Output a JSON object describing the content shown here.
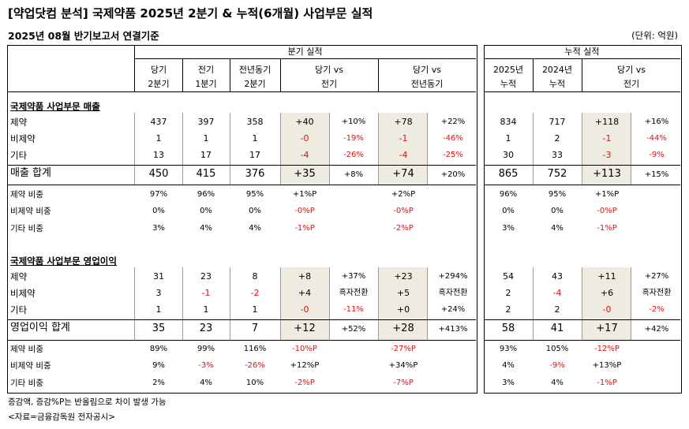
{
  "title": "[약업닷컴 분석] 국제약품 2025년 2분기 & 누적(6개월) 사업부문 실적",
  "subtitle": "2025년 08월 반기보고서 연결기준",
  "unit": "(단위: 억원)",
  "groups": {
    "quarter": "분기 실적",
    "cumulative": "누적 실적"
  },
  "headers": {
    "cur": [
      "당기",
      "2분기"
    ],
    "prev": [
      "전기",
      "1분기"
    ],
    "yoy": [
      "전년동기",
      "2분기"
    ],
    "vs_prev": [
      "당기 vs",
      "전기"
    ],
    "vs_yoy": [
      "당기 vs",
      "전년동기"
    ],
    "cum25": [
      "2025년",
      "누적"
    ],
    "cum24": [
      "2024년",
      "누적"
    ],
    "cum_vs": [
      "당기 vs",
      "전기"
    ]
  },
  "sections": [
    {
      "title": "국제약품 사업부문 매출",
      "rows": [
        {
          "label": "제약",
          "cur": "437",
          "prev": "397",
          "yoy": "358",
          "d1": "+40",
          "p1": "+10%",
          "d2": "+78",
          "p2": "+22%",
          "c25": "834",
          "c24": "717",
          "d3": "+118",
          "p3": "+16%"
        },
        {
          "label": "비제약",
          "cur": "1",
          "prev": "1",
          "yoy": "1",
          "d1": "-0",
          "p1": "-19%",
          "d2": "-1",
          "p2": "-46%",
          "c25": "1",
          "c24": "2",
          "d3": "-1",
          "p3": "-44%"
        },
        {
          "label": "기타",
          "cur": "13",
          "prev": "17",
          "yoy": "17",
          "d1": "-4",
          "p1": "-26%",
          "d2": "-4",
          "p2": "-25%",
          "c25": "30",
          "c24": "33",
          "d3": "-3",
          "p3": "-9%"
        }
      ],
      "total": {
        "label": "매출 합계",
        "cur": "450",
        "prev": "415",
        "yoy": "376",
        "d1": "+35",
        "p1": "+8%",
        "d2": "+74",
        "p2": "+20%",
        "c25": "865",
        "c24": "752",
        "d3": "+113",
        "p3": "+15%"
      },
      "ratios": [
        {
          "label": "제약 비중",
          "cur": "97%",
          "prev": "96%",
          "yoy": "95%",
          "d1": "+1%P",
          "d2": "+2%P",
          "c25": "96%",
          "c24": "95%",
          "d3": "+1%P"
        },
        {
          "label": "비제약 비중",
          "cur": "0%",
          "prev": "0%",
          "yoy": "0%",
          "d1": "-0%P",
          "d2": "-0%P",
          "c25": "0%",
          "c24": "0%",
          "d3": "-0%P"
        },
        {
          "label": "기타 비중",
          "cur": "3%",
          "prev": "4%",
          "yoy": "4%",
          "d1": "-1%P",
          "d2": "-2%P",
          "c25": "3%",
          "c24": "4%",
          "d3": "-1%P"
        }
      ]
    },
    {
      "title": "국제약품 사업부문 영업이익",
      "rows": [
        {
          "label": "제약",
          "cur": "31",
          "prev": "23",
          "yoy": "8",
          "d1": "+8",
          "p1": "+37%",
          "d2": "+23",
          "p2": "+294%",
          "c25": "54",
          "c24": "43",
          "d3": "+11",
          "p3": "+27%"
        },
        {
          "label": "비제약",
          "cur": "3",
          "prev": "-1",
          "yoy": "-2",
          "d1": "+4",
          "p1": "흑자전환",
          "d2": "+5",
          "p2": "흑자전환",
          "c25": "2",
          "c24": "-4",
          "d3": "+6",
          "p3": "흑자전환"
        },
        {
          "label": "기타",
          "cur": "1",
          "prev": "1",
          "yoy": "1",
          "d1": "-0",
          "p1": "-11%",
          "d2": "+0",
          "p2": "+24%",
          "c25": "2",
          "c24": "2",
          "d3": "-0",
          "p3": "-2%"
        }
      ],
      "total": {
        "label": "영업이익 합계",
        "cur": "35",
        "prev": "23",
        "yoy": "7",
        "d1": "+12",
        "p1": "+52%",
        "d2": "+28",
        "p2": "+413%",
        "c25": "58",
        "c24": "41",
        "d3": "+17",
        "p3": "+42%"
      },
      "ratios": [
        {
          "label": "제약 비중",
          "cur": "89%",
          "prev": "99%",
          "yoy": "116%",
          "d1": "-10%P",
          "d2": "-27%P",
          "c25": "93%",
          "c24": "105%",
          "d3": "-12%P"
        },
        {
          "label": "비제약 비중",
          "cur": "9%",
          "prev": "-3%",
          "yoy": "-26%",
          "d1": "+12%P",
          "d2": "+34%P",
          "c25": "4%",
          "c24": "-9%",
          "d3": "+13%P"
        },
        {
          "label": "기타 비중",
          "cur": "2%",
          "prev": "4%",
          "yoy": "10%",
          "d1": "-2%P",
          "d2": "-7%P",
          "c25": "3%",
          "c24": "4%",
          "d3": "-1%P"
        }
      ]
    }
  ],
  "footnotes": [
    "증감액, 증감%P는 반올림으로 차이 발생 가능",
    "<자료=금융감독원 전자공시>"
  ],
  "colors": {
    "negative": "#e01010",
    "highlight": "#eeebe1"
  }
}
